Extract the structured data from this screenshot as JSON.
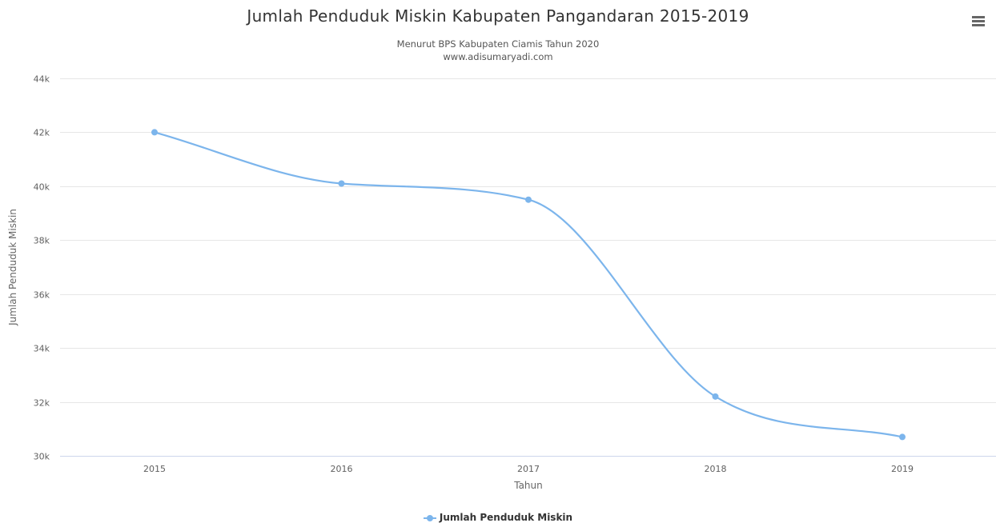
{
  "chart_data": {
    "type": "line",
    "title": "Jumlah Penduduk Miskin Kabupaten Pangandaran 2015-2019",
    "subtitle_lines": [
      "Menurut BPS Kabupaten Ciamis Tahun 2020",
      "www.adisumaryadi.com"
    ],
    "xlabel": "Tahun",
    "ylabel": "Jumlah Penduduk Miskin",
    "categories": [
      "2015",
      "2016",
      "2017",
      "2018",
      "2019"
    ],
    "series": [
      {
        "name": "Jumlah Penduduk Miskin",
        "values": [
          42000,
          40100,
          39500,
          32200,
          30700
        ],
        "color": "#7cb5ec"
      }
    ],
    "ylim": [
      30000,
      44000
    ],
    "yticks": [
      30000,
      32000,
      34000,
      36000,
      38000,
      40000,
      42000,
      44000
    ],
    "ytick_labels": [
      "30k",
      "32k",
      "34k",
      "36k",
      "38k",
      "40k",
      "42k",
      "44k"
    ],
    "grid": true,
    "smooth": true,
    "legend_position": "bottom-center"
  },
  "menu": {
    "icon": "hamburger-menu-icon"
  }
}
